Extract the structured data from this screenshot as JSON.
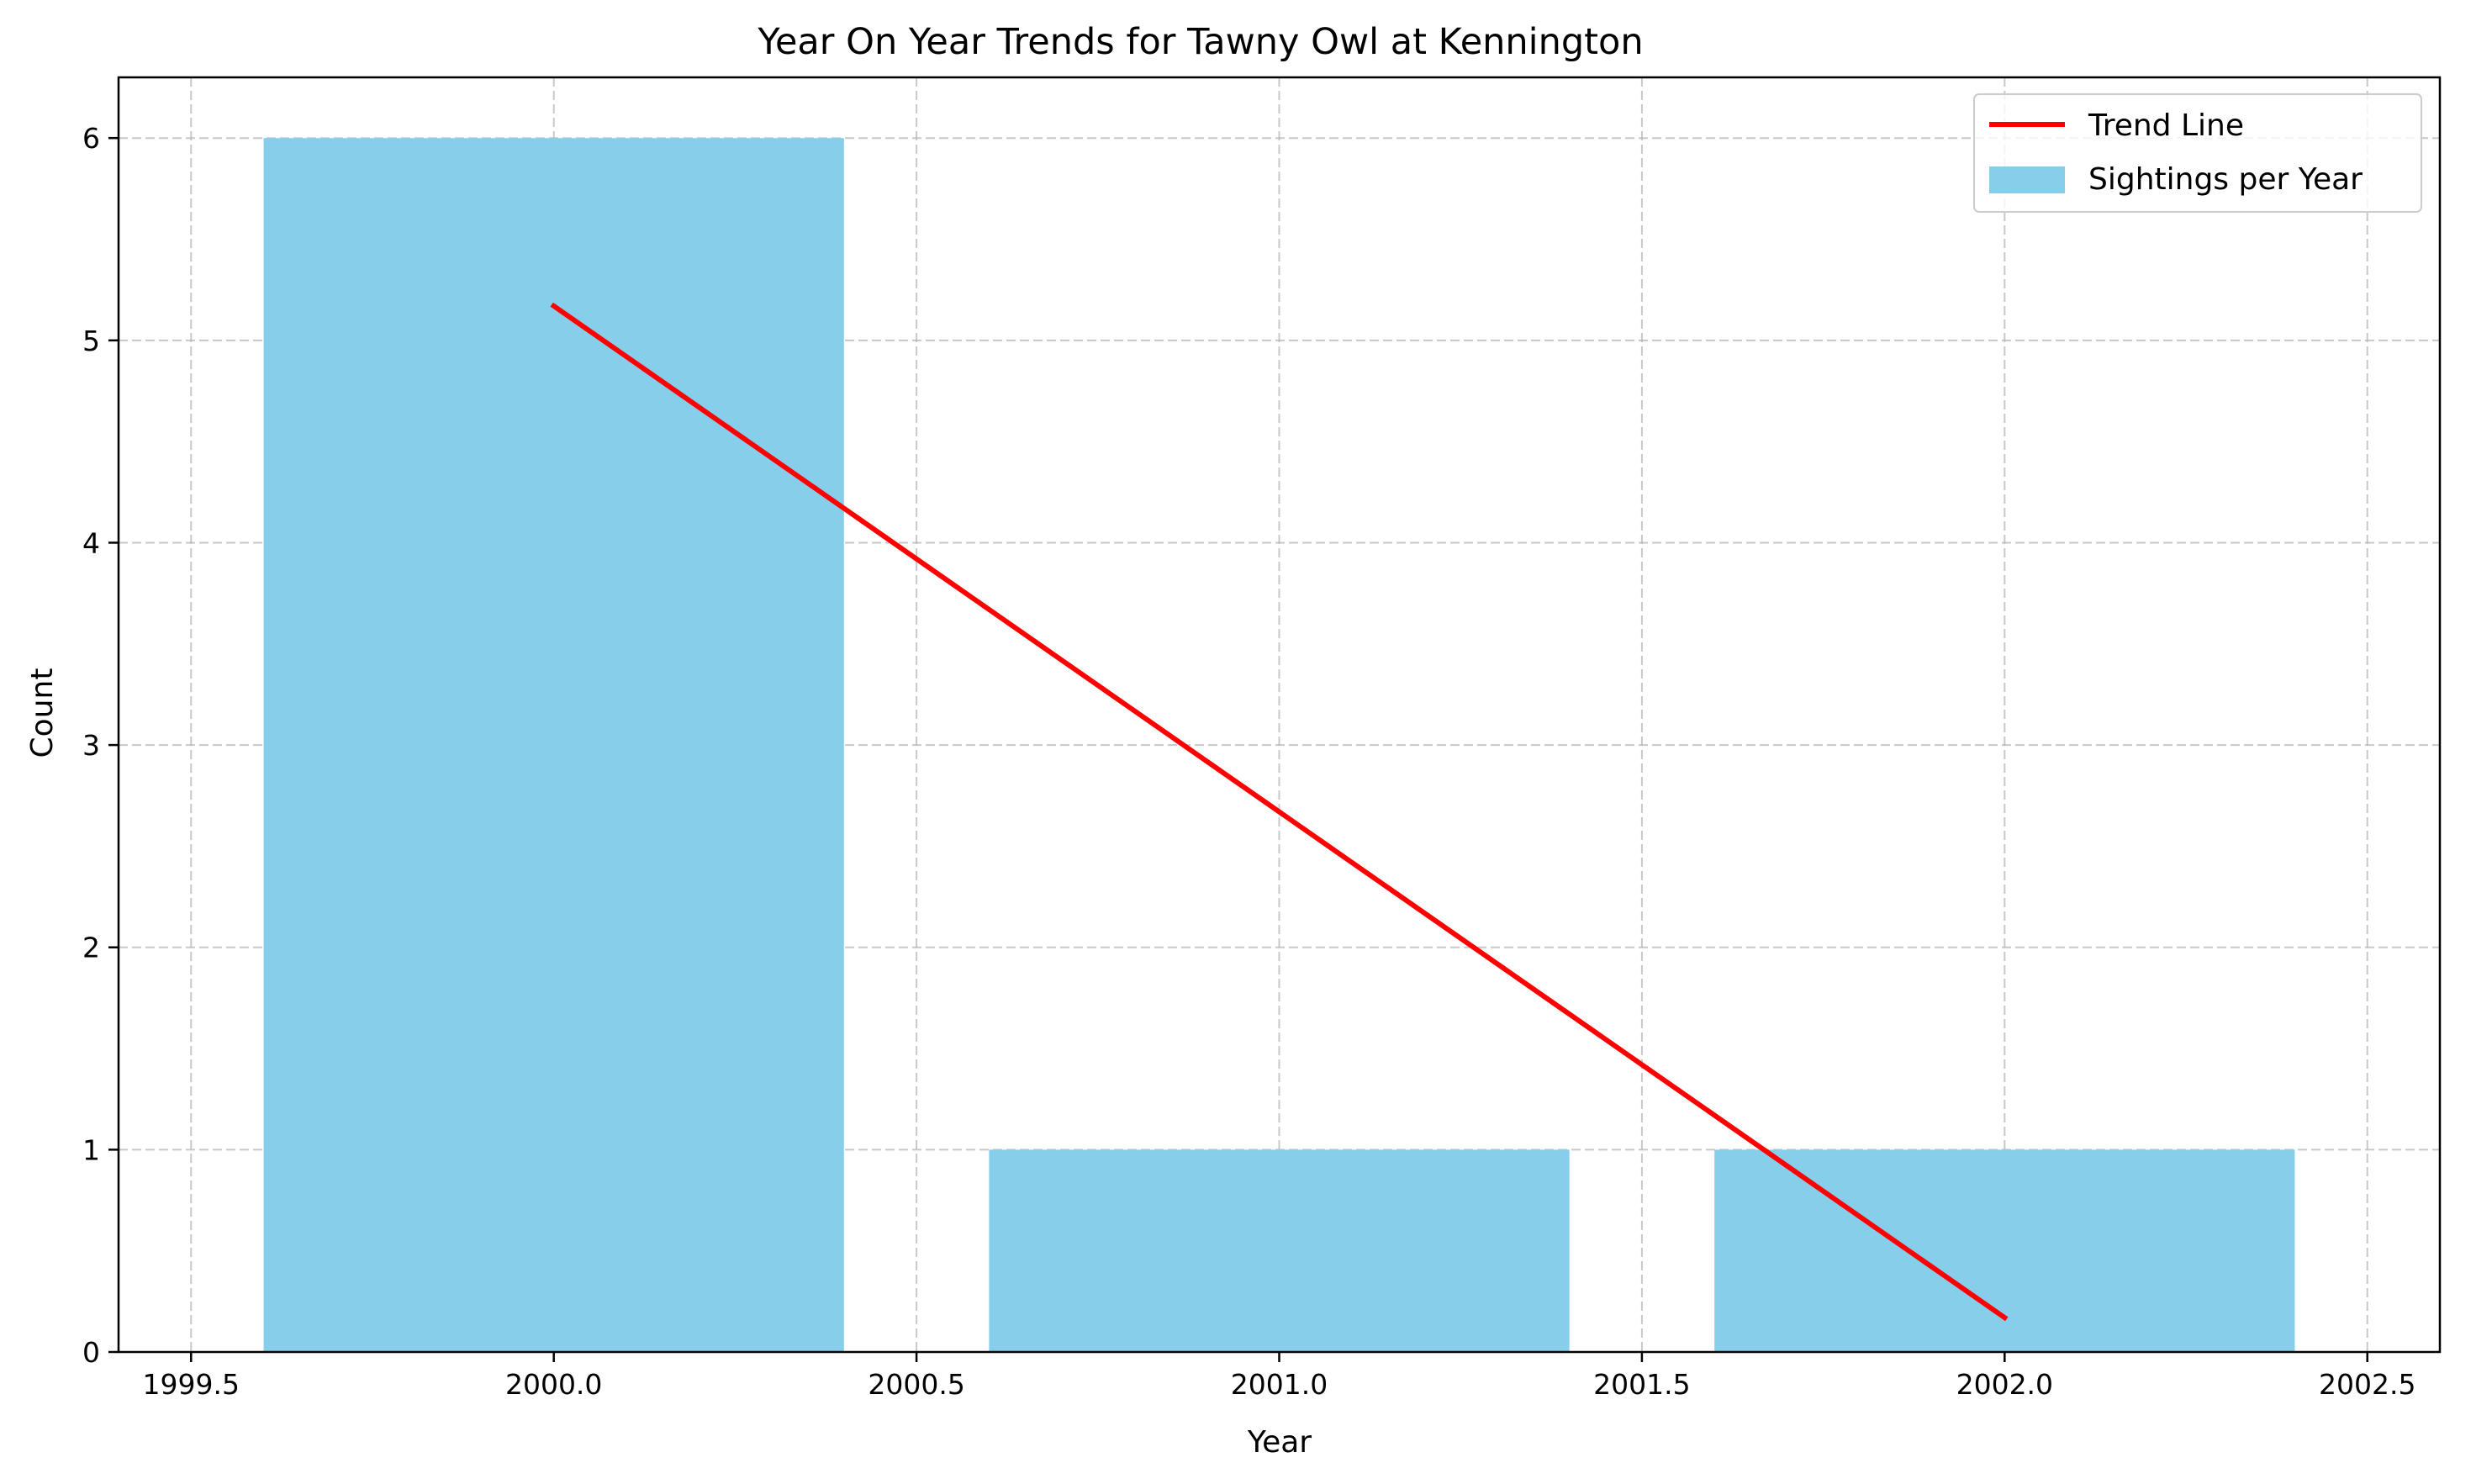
{
  "chart_data": {
    "type": "bar",
    "title": "Year On Year Trends for Tawny Owl at Kennington",
    "xlabel": "Year",
    "ylabel": "Count",
    "x": [
      2000,
      2001,
      2002
    ],
    "series": [
      {
        "name": "Sightings per Year",
        "type": "bar",
        "values": [
          6,
          1,
          1
        ],
        "color": "#87ceeb"
      },
      {
        "name": "Trend Line",
        "type": "line",
        "x": [
          2000,
          2002
        ],
        "values": [
          5.17,
          0.17
        ],
        "color": "#ff0000"
      }
    ],
    "xlim": [
      1999.4,
      2002.6
    ],
    "ylim": [
      0,
      6.3
    ],
    "xticks": [
      1999.5,
      2000.0,
      2000.5,
      2001.0,
      2001.5,
      2002.0,
      2002.5
    ],
    "xtick_labels": [
      "1999.5",
      "2000.0",
      "2000.5",
      "2001.0",
      "2001.5",
      "2002.0",
      "2002.5"
    ],
    "yticks": [
      0,
      1,
      2,
      3,
      4,
      5,
      6
    ],
    "ytick_labels": [
      "0",
      "1",
      "2",
      "3",
      "4",
      "5",
      "6"
    ],
    "bar_width": 0.8,
    "grid": true,
    "legend": {
      "placement": "top-right",
      "entries": [
        "Trend Line",
        "Sightings per Year"
      ]
    }
  }
}
